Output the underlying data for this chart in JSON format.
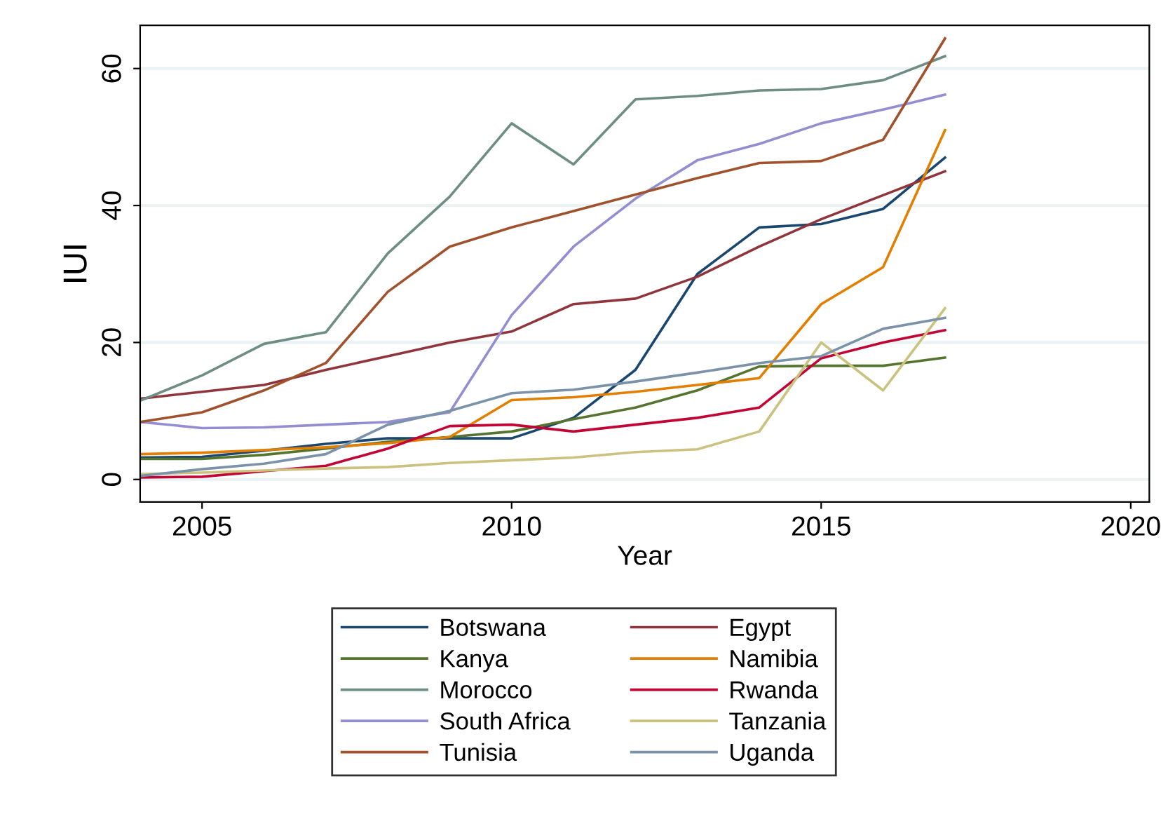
{
  "chart_data": {
    "type": "line",
    "xlabel": "Year",
    "ylabel": "IUI",
    "x": [
      2004,
      2005,
      2006,
      2007,
      2008,
      2009,
      2010,
      2011,
      2012,
      2013,
      2014,
      2015,
      2016,
      2017
    ],
    "xlim": [
      2004,
      2020.3
    ],
    "xticks": [
      2005,
      2010,
      2015,
      2020
    ],
    "ylim": [
      -3.3,
      66.3
    ],
    "yticks": [
      0,
      20,
      40,
      60
    ],
    "grid": "y",
    "legend": "bottom",
    "marker": "none",
    "line_style": "solid",
    "series": [
      {
        "name": "Botswana",
        "color": "#1a476f",
        "values": [
          3.2,
          3.3,
          4.2,
          5.2,
          6,
          6,
          6,
          9,
          16,
          30,
          36.8,
          37.3,
          39.5,
          47
        ]
      },
      {
        "name": "Egypt",
        "color": "#90353b",
        "values": [
          11.8,
          12.8,
          13.8,
          16,
          18,
          20,
          21.6,
          25.6,
          26.4,
          29.6,
          34,
          38,
          41.5,
          45
        ]
      },
      {
        "name": "Kanya",
        "color": "#55752f",
        "values": [
          3,
          3,
          3.6,
          4.5,
          5.5,
          6.2,
          7,
          8.8,
          10.5,
          13,
          16.5,
          16.6,
          16.6,
          17.8
        ]
      },
      {
        "name": "Namibia",
        "color": "#e37e00",
        "values": [
          3.7,
          3.9,
          4.3,
          4.7,
          5.3,
          6.2,
          11.6,
          12,
          12.8,
          13.8,
          14.8,
          25.6,
          31,
          51
        ]
      },
      {
        "name": "Morocco",
        "color": "#6e8e84",
        "values": [
          11.5,
          15.2,
          19.8,
          21.5,
          33,
          41.3,
          52,
          46,
          55.5,
          56,
          56.8,
          57,
          58.3,
          61.8
        ]
      },
      {
        "name": "Rwanda",
        "color": "#c10534",
        "values": [
          0.3,
          0.4,
          1.2,
          2,
          4.5,
          7.8,
          8,
          7,
          8,
          9,
          10.5,
          17.7,
          20,
          21.8
        ]
      },
      {
        "name": "South Africa",
        "color": "#938dd2",
        "values": [
          8.4,
          7.5,
          7.6,
          8,
          8.4,
          9.8,
          24,
          34,
          41,
          46.6,
          49,
          52,
          54,
          56.2
        ]
      },
      {
        "name": "Tanzania",
        "color": "#cac27e",
        "values": [
          0.8,
          1,
          1.3,
          1.6,
          1.8,
          2.4,
          2.8,
          3.2,
          4,
          4.4,
          7,
          20,
          13,
          25
        ]
      },
      {
        "name": "Tunisia",
        "color": "#a0522d",
        "values": [
          8.4,
          9.8,
          13,
          17,
          27.4,
          34,
          36.8,
          39.2,
          41.6,
          44,
          46.2,
          46.5,
          49.6,
          64.4
        ]
      },
      {
        "name": "Uganda",
        "color": "#7b92a8",
        "values": [
          0.5,
          1.5,
          2.3,
          3.7,
          8,
          10,
          12.6,
          13.1,
          14.3,
          15.6,
          17,
          18,
          22,
          23.6
        ]
      }
    ]
  }
}
